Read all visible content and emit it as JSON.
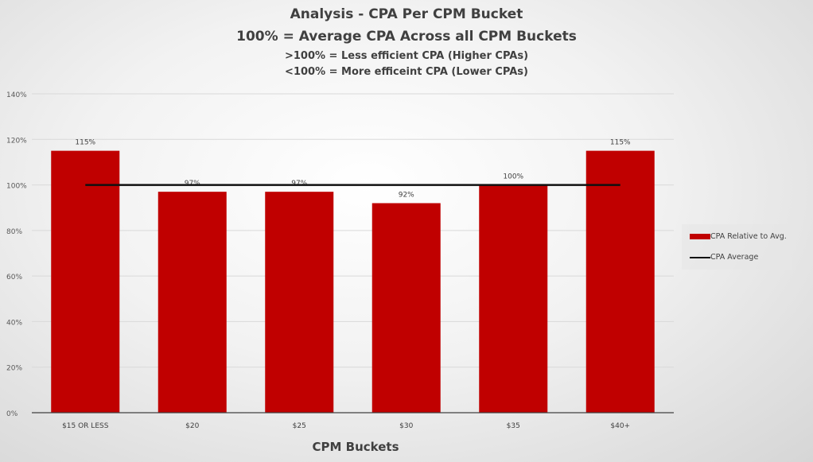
{
  "title_lines": [
    "Analysis - CPA Per CPM Bucket",
    "100% = Average CPA Across all CPM Buckets",
    ">100% = Less efficient CPA (Higher CPAs)",
    "<100% = More efficeint CPA (Lower CPAs)"
  ],
  "chart_data": {
    "type": "bar",
    "title": "Analysis - CPA Per CPM Bucket",
    "xlabel": "CPM Buckets",
    "ylabel": "",
    "categories": [
      "$15 OR LESS",
      "$20",
      "$25",
      "$30",
      "$35",
      "$40+"
    ],
    "series": [
      {
        "name": "CPA Relative to Avg.",
        "type": "bar",
        "values": [
          115,
          97,
          97,
          92,
          100,
          115
        ],
        "labels": [
          "115%",
          "97%",
          "97%",
          "92%",
          "100%",
          "115%"
        ],
        "color": "#c00000"
      },
      {
        "name": "CPA Average",
        "type": "line",
        "values": [
          100,
          100,
          100,
          100,
          100,
          100
        ],
        "color": "#111111"
      }
    ],
    "ylim": [
      0,
      140
    ],
    "yticks": [
      "0%",
      "20%",
      "40%",
      "60%",
      "80%",
      "100%",
      "120%",
      "140%"
    ],
    "grid": true,
    "legend": "right"
  }
}
